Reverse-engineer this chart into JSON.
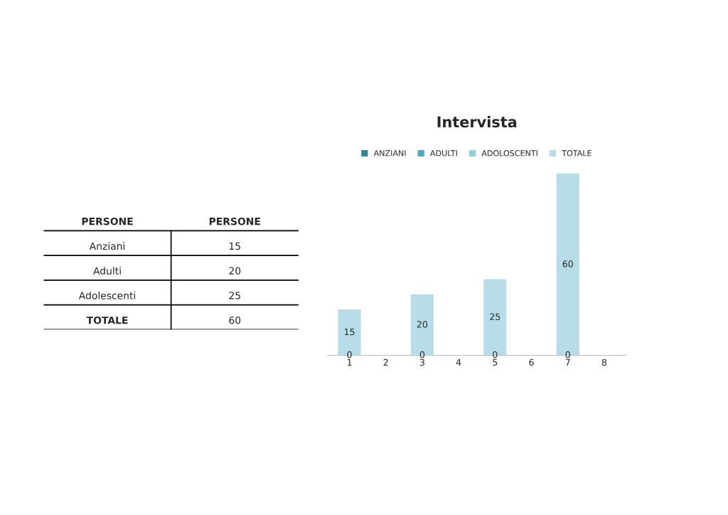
{
  "chart_data": [
    {
      "type": "other",
      "annotations": [
        "PERSONE",
        "PERSONE",
        "Anziani",
        "15",
        "Adulti",
        "20",
        "Adolescenti",
        "25",
        "TOTALE",
        "60"
      ]
    },
    {
      "type": "bar",
      "title": "Intervista",
      "categories": [
        "1",
        "2",
        "3",
        "4",
        "5",
        "6",
        "7",
        "8"
      ],
      "series": [
        {
          "name": "ANZIANI",
          "color": "#31859c",
          "values": [
            0,
            null,
            0,
            null,
            0,
            null,
            0,
            null
          ]
        },
        {
          "name": "ADULTI",
          "color": "#4bacc6",
          "values": [
            null,
            null,
            null,
            null,
            null,
            null,
            null,
            null
          ]
        },
        {
          "name": "ADOLOSCENTI",
          "color": "#92cddc",
          "values": [
            null,
            null,
            null,
            null,
            null,
            null,
            null,
            null
          ]
        },
        {
          "name": "TOTALE",
          "color": "#b7dee8",
          "values": [
            15,
            null,
            20,
            null,
            25,
            null,
            60,
            null
          ]
        }
      ],
      "data_labels": true,
      "legend": "top",
      "grid": false
    }
  ]
}
